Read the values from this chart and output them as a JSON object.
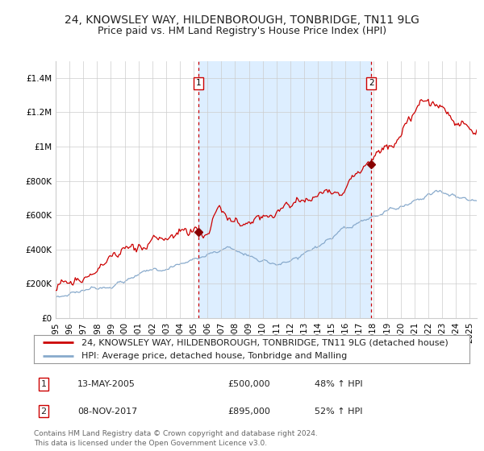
{
  "title": "24, KNOWSLEY WAY, HILDENBOROUGH, TONBRIDGE, TN11 9LG",
  "subtitle": "Price paid vs. HM Land Registry's House Price Index (HPI)",
  "ylim": [
    0,
    1500000
  ],
  "yticks": [
    0,
    200000,
    400000,
    600000,
    800000,
    1000000,
    1200000,
    1400000
  ],
  "ytick_labels": [
    "£0",
    "£200K",
    "£400K",
    "£600K",
    "£800K",
    "£1M",
    "£1.2M",
    "£1.4M"
  ],
  "xlim_start": 1995.0,
  "xlim_end": 2025.5,
  "sale1_x": 2005.36,
  "sale1_y": 500000,
  "sale2_x": 2017.86,
  "sale2_y": 895000,
  "vline1_x": 2005.36,
  "vline2_x": 2017.86,
  "bg_fill_color": "#ddeeff",
  "line1_color": "#cc0000",
  "line2_color": "#88aacc",
  "grid_color": "#cccccc",
  "legend1_label": "24, KNOWSLEY WAY, HILDENBOROUGH, TONBRIDGE, TN11 9LG (detached house)",
  "legend2_label": "HPI: Average price, detached house, Tonbridge and Malling",
  "annotation1_num": "1",
  "annotation2_num": "2",
  "table_row1": [
    "1",
    "13-MAY-2005",
    "£500,000",
    "48% ↑ HPI"
  ],
  "table_row2": [
    "2",
    "08-NOV-2017",
    "£895,000",
    "52% ↑ HPI"
  ],
  "footer": "Contains HM Land Registry data © Crown copyright and database right 2024.\nThis data is licensed under the Open Government Licence v3.0.",
  "title_fontsize": 10,
  "subtitle_fontsize": 9,
  "tick_fontsize": 7.5,
  "legend_fontsize": 8,
  "table_fontsize": 8,
  "footer_fontsize": 6.5
}
